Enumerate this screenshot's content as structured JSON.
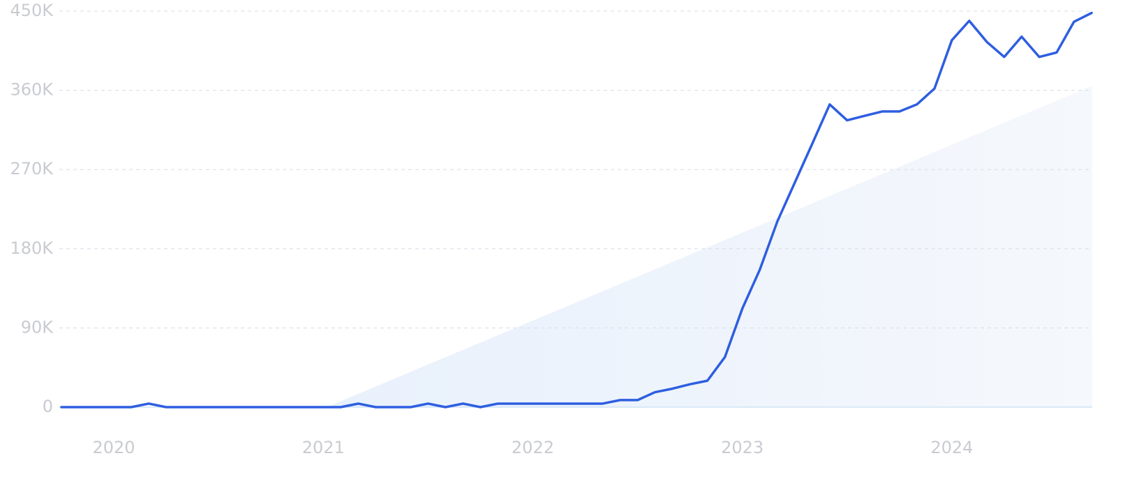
{
  "chart_data": {
    "type": "line",
    "x": [
      2019.75,
      2019.833,
      2019.917,
      2020,
      2020.083,
      2020.167,
      2020.25,
      2020.333,
      2020.417,
      2020.5,
      2020.583,
      2020.667,
      2020.75,
      2020.833,
      2020.917,
      2021,
      2021.083,
      2021.167,
      2021.25,
      2021.333,
      2021.417,
      2021.5,
      2021.583,
      2021.667,
      2021.75,
      2021.833,
      2021.917,
      2022,
      2022.083,
      2022.167,
      2022.25,
      2022.333,
      2022.417,
      2022.5,
      2022.583,
      2022.667,
      2022.75,
      2022.833,
      2022.917,
      2023,
      2023.083,
      2023.167,
      2023.25,
      2023.333,
      2023.417,
      2023.5,
      2023.583,
      2023.667,
      2023.75,
      2023.833,
      2023.917,
      2024,
      2024.083,
      2024.167,
      2024.25,
      2024.333,
      2024.417,
      2024.5,
      2024.583,
      2024.667
    ],
    "values": [
      0,
      0,
      0,
      0,
      0,
      4000,
      0,
      0,
      0,
      0,
      0,
      0,
      0,
      0,
      0,
      0,
      0,
      4000,
      0,
      0,
      0,
      4000,
      0,
      4000,
      0,
      4000,
      4000,
      4000,
      4000,
      4000,
      4000,
      4000,
      8000,
      8000,
      17000,
      21000,
      26000,
      30000,
      57000,
      112000,
      156000,
      211000,
      255000,
      299000,
      344000,
      326000,
      331000,
      336000,
      336000,
      344000,
      362000,
      417000,
      439000,
      415000,
      398000,
      421000,
      398000,
      403000,
      438000,
      448000
    ],
    "color": "#2e5ee0",
    "xlim": [
      2019.75,
      2024.67
    ],
    "xticks": [
      2020,
      2021,
      2022,
      2023,
      2024
    ],
    "ylim": [
      0,
      450000
    ],
    "yticks": [
      0,
      {
        "value": 90000,
        "label": "90K"
      },
      {
        "value": 180000,
        "label": "180K"
      },
      {
        "value": 270000,
        "label": "270K"
      },
      {
        "value": 360000,
        "label": "360K"
      },
      {
        "value": 450000,
        "label": "450K"
      }
    ],
    "grid": true
  }
}
